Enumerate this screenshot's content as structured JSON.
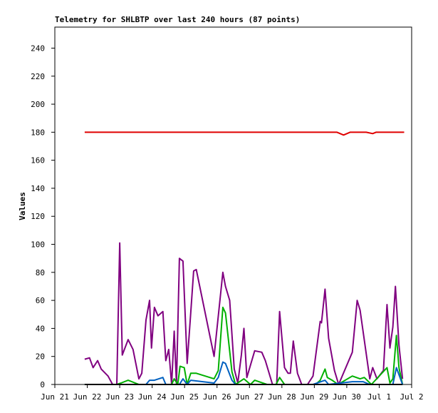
{
  "chart_data": {
    "type": "line",
    "title": "Telemetry for SHLBTP over last 240 hours (87 points)",
    "y_label": "Values",
    "xlim": [
      0,
      11
    ],
    "ylim": [
      0,
      255
    ],
    "xticks": [
      {
        "value": 0,
        "label": "Jun 21"
      },
      {
        "value": 1,
        "label": "Jun 22"
      },
      {
        "value": 2,
        "label": "Jun 23"
      },
      {
        "value": 3,
        "label": "Jun 24"
      },
      {
        "value": 4,
        "label": "Jun 25"
      },
      {
        "value": 5,
        "label": "Jun 26"
      },
      {
        "value": 6,
        "label": "Jun 27"
      },
      {
        "value": 7,
        "label": "Jun 28"
      },
      {
        "value": 8,
        "label": "Jun 29"
      },
      {
        "value": 9,
        "label": "Jun 30"
      },
      {
        "value": 10,
        "label": "Jul 1"
      },
      {
        "value": 11,
        "label": "Jul 2"
      }
    ],
    "yticks": [
      0,
      20,
      40,
      60,
      80,
      100,
      120,
      140,
      160,
      180,
      200,
      220,
      240
    ],
    "series": [
      {
        "color": "#e00000",
        "x": [
          0.92,
          8.7,
          8.9,
          9.1,
          9.6,
          9.8,
          9.9,
          10.77
        ],
        "values": [
          180,
          180,
          178,
          180,
          180,
          179,
          180,
          180
        ]
      },
      {
        "color": "#800080",
        "x": [
          0.92,
          1.07,
          1.18,
          1.32,
          1.43,
          1.64,
          1.78,
          1.91,
          2.0,
          2.08,
          2.26,
          2.41,
          2.59,
          2.68,
          2.81,
          2.92,
          2.98,
          3.07,
          3.18,
          3.33,
          3.42,
          3.51,
          3.6,
          3.68,
          3.75,
          3.84,
          3.95,
          4.08,
          4.19,
          4.28,
          4.36,
          4.91,
          5.18,
          5.26,
          5.39,
          5.53,
          5.64,
          5.75,
          5.83,
          5.92,
          6.16,
          6.38,
          6.49,
          6.71,
          6.84,
          6.93,
          7.08,
          7.19,
          7.26,
          7.35,
          7.48,
          7.61,
          7.79,
          7.96,
          8.18,
          8.22,
          8.33,
          8.44,
          8.62,
          8.75,
          9.17,
          9.32,
          9.41,
          9.71,
          9.8,
          9.93,
          10.13,
          10.24,
          10.33,
          10.42,
          10.5,
          10.61,
          10.72
        ],
        "values": [
          18,
          19,
          12,
          17,
          11,
          6,
          0,
          0,
          101,
          21,
          32,
          25,
          4,
          8,
          46,
          60,
          26,
          55,
          49,
          52,
          17,
          25,
          0,
          38,
          0,
          90,
          88,
          15,
          51,
          81,
          82,
          20,
          80,
          70,
          60,
          11,
          1,
          21,
          40,
          5,
          24,
          23,
          17,
          0,
          0,
          52,
          12,
          8,
          8,
          31,
          8,
          0,
          0,
          6,
          45,
          44,
          68,
          33,
          10,
          0,
          23,
          60,
          53,
          4,
          12,
          4,
          10,
          57,
          26,
          41,
          70,
          28,
          4
        ]
      },
      {
        "color": "#00b000",
        "x": [
          0.92,
          1.91,
          2.04,
          2.26,
          2.59,
          3.6,
          3.68,
          3.79,
          3.86,
          3.99,
          4.08,
          4.19,
          4.36,
          4.91,
          5.04,
          5.18,
          5.26,
          5.46,
          5.57,
          5.83,
          6.03,
          6.16,
          6.54,
          6.82,
          6.93,
          7.08,
          8.04,
          8.18,
          8.33,
          8.4,
          8.55,
          8.73,
          9.17,
          9.41,
          9.54,
          9.76,
          10.24,
          10.33,
          10.42,
          10.53,
          10.61,
          10.72
        ],
        "values": [
          0,
          0,
          1,
          3,
          0,
          0,
          4,
          0,
          13,
          12,
          0,
          8,
          8,
          4,
          10,
          55,
          51,
          9,
          0,
          4,
          0,
          3,
          0,
          0,
          5,
          0,
          0,
          3,
          11,
          5,
          3,
          0,
          6,
          4,
          5,
          0,
          12,
          1,
          4,
          35,
          12,
          0
        ]
      },
      {
        "color": "#0060c0",
        "x": [
          0.92,
          2.81,
          2.92,
          3.07,
          3.33,
          3.42,
          3.84,
          3.95,
          4.08,
          4.19,
          4.91,
          5.04,
          5.18,
          5.26,
          5.46,
          5.57,
          7.96,
          8.33,
          8.44,
          9.17,
          9.5,
          9.71,
          10.42,
          10.53,
          10.72
        ],
        "values": [
          0,
          0,
          3,
          3,
          5,
          0,
          0,
          4,
          0,
          3,
          1,
          5,
          16,
          15,
          3,
          0,
          0,
          3,
          0,
          2,
          2,
          0,
          0,
          12,
          0
        ]
      },
      {
        "color": "#000000",
        "x": [
          0.92,
          10.72
        ],
        "values": [
          0,
          0
        ]
      }
    ]
  }
}
